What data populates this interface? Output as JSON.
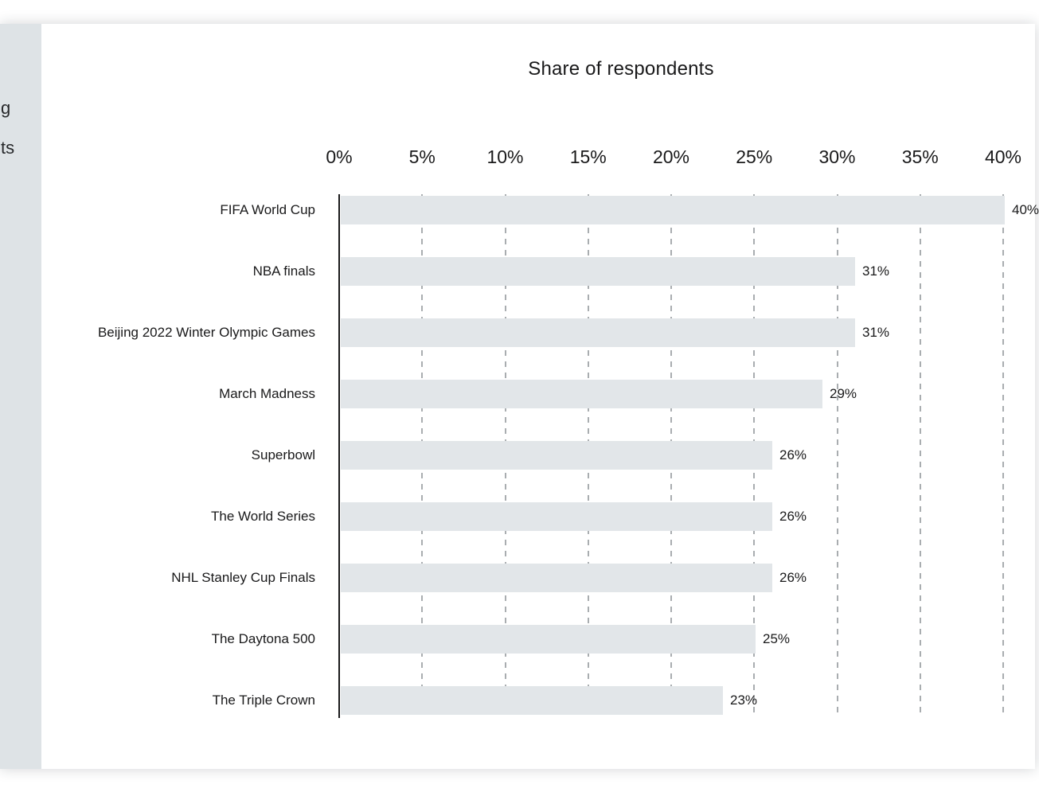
{
  "page": {
    "sidebar_fragments": [
      "g",
      "ts"
    ]
  },
  "chart_data": {
    "type": "bar",
    "orientation": "horizontal",
    "title": "Share of respondents",
    "categories": [
      "FIFA World Cup",
      "NBA finals",
      "Beijing 2022 Winter Olympic Games",
      "March Madness",
      "Superbowl",
      "The World Series",
      "NHL Stanley Cup Finals",
      "The Daytona 500",
      "The  Triple Crown"
    ],
    "values": [
      40,
      31,
      31,
      29,
      26,
      26,
      26,
      25,
      23
    ],
    "value_labels": [
      "40%",
      "31%",
      "31%",
      "29%",
      "26%",
      "26%",
      "26%",
      "25%",
      "23%"
    ],
    "x_ticks": [
      "0%",
      "5%",
      "10%",
      "15%",
      "20%",
      "25%",
      "30%",
      "35%",
      "40%"
    ],
    "xlim": [
      0,
      40
    ],
    "xlabel": "",
    "ylabel": "",
    "legend": "none",
    "grid": "vertical-dashed",
    "colors": {
      "bar_fill": "#e2e6e9",
      "axis_line": "#19191a",
      "gridline": "#a9adb0",
      "text": "#19191a",
      "sidebar_bg": "#dee3e6",
      "card_bg": "#ffffff"
    }
  }
}
